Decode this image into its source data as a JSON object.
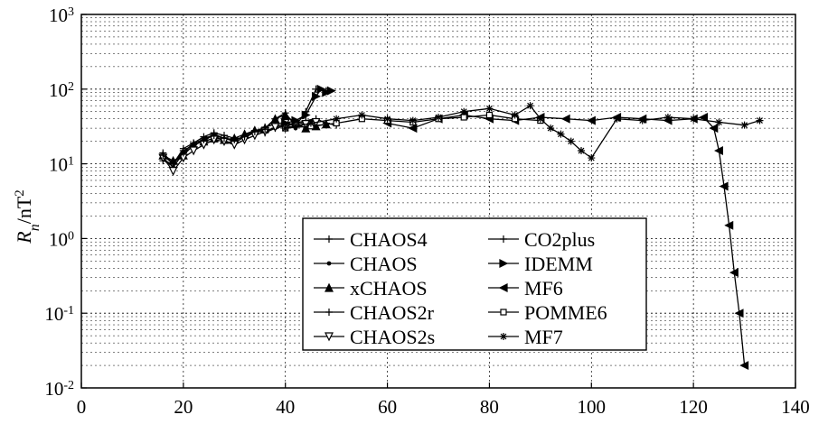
{
  "chart_data": {
    "type": "line",
    "title": "",
    "xlabel": "",
    "ylabel": {
      "base": "R",
      "subscript": "n",
      "rest": "/nT",
      "superscript": "2"
    },
    "xlim": [
      0,
      140
    ],
    "ylim": [
      0.01,
      1000
    ],
    "yscale": "log",
    "grid": true,
    "x_ticks": [
      "0",
      "20",
      "40",
      "60",
      "80",
      "100",
      "120",
      "140"
    ],
    "y_ticks": [
      {
        "base": "10",
        "exp": "-2"
      },
      {
        "base": "10",
        "exp": "-1"
      },
      {
        "base": "10",
        "exp": "0"
      },
      {
        "base": "10",
        "exp": "1"
      },
      {
        "base": "10",
        "exp": "2"
      },
      {
        "base": "10",
        "exp": "3"
      }
    ],
    "legend_position": "bottom-center",
    "legend": [
      "CHAOS4",
      "CHAOS",
      "xCHAOS",
      "CHAOS2r",
      "CHAOS2s",
      "CO2plus",
      "IDEMM",
      "MF6",
      "POMME6",
      "MF7"
    ],
    "series": [
      {
        "name": "CHAOS4",
        "marker": "plus",
        "x": [
          16,
          18,
          20,
          22,
          24,
          26,
          28,
          30,
          32,
          34,
          36,
          38,
          40,
          42,
          44,
          46,
          48,
          50
        ],
        "y": [
          14,
          10,
          15,
          18,
          20,
          25,
          22,
          20,
          24,
          28,
          26,
          30,
          32,
          35,
          38,
          40,
          35,
          33
        ]
      },
      {
        "name": "CHAOS",
        "marker": "dot",
        "x": [
          16,
          18,
          20,
          22,
          24,
          26,
          28,
          30,
          32,
          34,
          36,
          38,
          40,
          42,
          44,
          46
        ],
        "y": [
          12,
          9,
          14,
          17,
          22,
          24,
          20,
          19,
          23,
          26,
          28,
          30,
          33,
          30,
          36,
          38
        ]
      },
      {
        "name": "xCHAOS",
        "marker": "triangle-up",
        "x": [
          16,
          18,
          20,
          22,
          24,
          26,
          28,
          30,
          32,
          34,
          36,
          38,
          40,
          42,
          44,
          46,
          48
        ],
        "y": [
          13,
          11,
          13,
          18,
          20,
          22,
          21,
          22,
          25,
          28,
          30,
          40,
          45,
          35,
          30,
          32,
          34
        ]
      },
      {
        "name": "CHAOS2r",
        "marker": "plus",
        "x": [
          16,
          18,
          20,
          22,
          24,
          26,
          28,
          30,
          32,
          34,
          36,
          38,
          40,
          42,
          44,
          46
        ],
        "y": [
          11,
          10,
          16,
          19,
          23,
          26,
          24,
          22,
          22,
          27,
          31,
          34,
          36,
          33,
          37,
          39
        ]
      },
      {
        "name": "CHAOS2s",
        "marker": "triangle-down",
        "x": [
          16,
          18,
          20,
          22,
          24,
          26,
          28,
          30,
          32,
          34,
          36,
          38,
          40,
          42,
          44,
          46
        ],
        "y": [
          12,
          8,
          12,
          15,
          18,
          21,
          20,
          18,
          21,
          24,
          27,
          31,
          35,
          32,
          34,
          36
        ]
      },
      {
        "name": "CO2plus",
        "marker": "plus",
        "x": [
          16,
          18,
          20,
          22,
          24,
          26,
          28,
          30,
          32,
          34,
          36,
          38,
          40,
          42,
          44,
          46,
          48
        ],
        "y": [
          13,
          10,
          14,
          19,
          21,
          24,
          22,
          21,
          23,
          27,
          29,
          40,
          48,
          32,
          50,
          100,
          95
        ]
      },
      {
        "name": "IDEMM",
        "marker": "triangle-right",
        "x": [
          40,
          42,
          44,
          46,
          47,
          48,
          49
        ],
        "y": [
          35,
          38,
          45,
          80,
          100,
          90,
          95
        ]
      },
      {
        "name": "MF6",
        "marker": "triangle-left",
        "x": [
          60,
          65,
          70,
          75,
          80,
          85,
          90,
          95,
          100,
          105,
          110,
          115,
          120,
          122,
          124,
          125,
          126,
          127,
          128,
          129,
          130
        ],
        "y": [
          35,
          30,
          40,
          45,
          40,
          38,
          42,
          40,
          38,
          42,
          40,
          38,
          40,
          42,
          30,
          15,
          5,
          1.5,
          0.35,
          0.1,
          0.02
        ]
      },
      {
        "name": "POMME6",
        "marker": "square",
        "x": [
          40,
          45,
          50,
          55,
          60,
          65,
          70,
          75,
          80,
          85,
          90
        ],
        "y": [
          30,
          32,
          35,
          40,
          38,
          36,
          40,
          42,
          45,
          40,
          38
        ]
      },
      {
        "name": "MF7",
        "marker": "star",
        "x": [
          40,
          45,
          50,
          55,
          60,
          65,
          70,
          75,
          80,
          85,
          88,
          90,
          92,
          94,
          96,
          98,
          100,
          105,
          110,
          115,
          120,
          125,
          130,
          133
        ],
        "y": [
          30,
          35,
          40,
          45,
          40,
          38,
          42,
          50,
          55,
          45,
          60,
          40,
          30,
          25,
          20,
          15,
          12,
          40,
          38,
          42,
          40,
          36,
          33,
          38
        ]
      }
    ]
  }
}
